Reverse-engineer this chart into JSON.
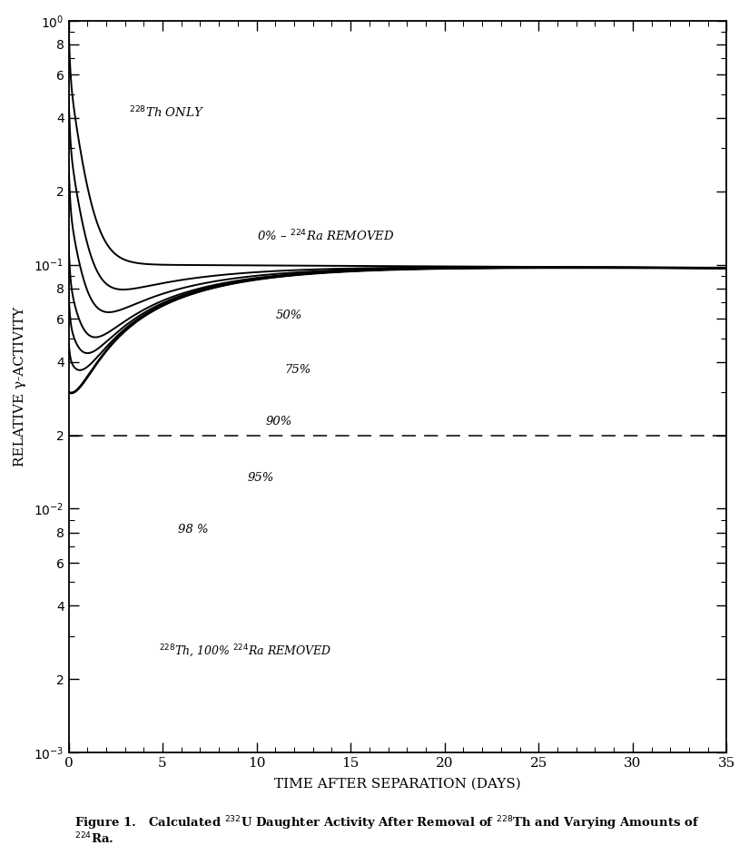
{
  "xlabel": "TIME AFTER SEPARATION (DAYS)",
  "ylabel": "RELATIVE γ-ACTIVITY",
  "xlim": [
    0,
    35
  ],
  "ylim": [
    0.001,
    1.0
  ],
  "dashed_line_y": 0.02,
  "background_color": "#ffffff",
  "curve_color": "#000000",
  "labels": {
    "Th_only": "$^{228}$Th ONLY",
    "0pct": "0% – $^{224}$Ra REMOVED",
    "50pct": "50%",
    "75pct": "75%",
    "90pct": "90%",
    "95pct": "95%",
    "98pct": "98 %",
    "100pct": "$^{228}$Th, 100% $^{224}$Ra REMOVED"
  },
  "figure_caption_1": "Figure 1.   Calculated $^{232}$U Daughter Activity After Removal of $^{228}$Th and Varying Amounts of",
  "figure_caption_2": "$^{224}$Ra."
}
